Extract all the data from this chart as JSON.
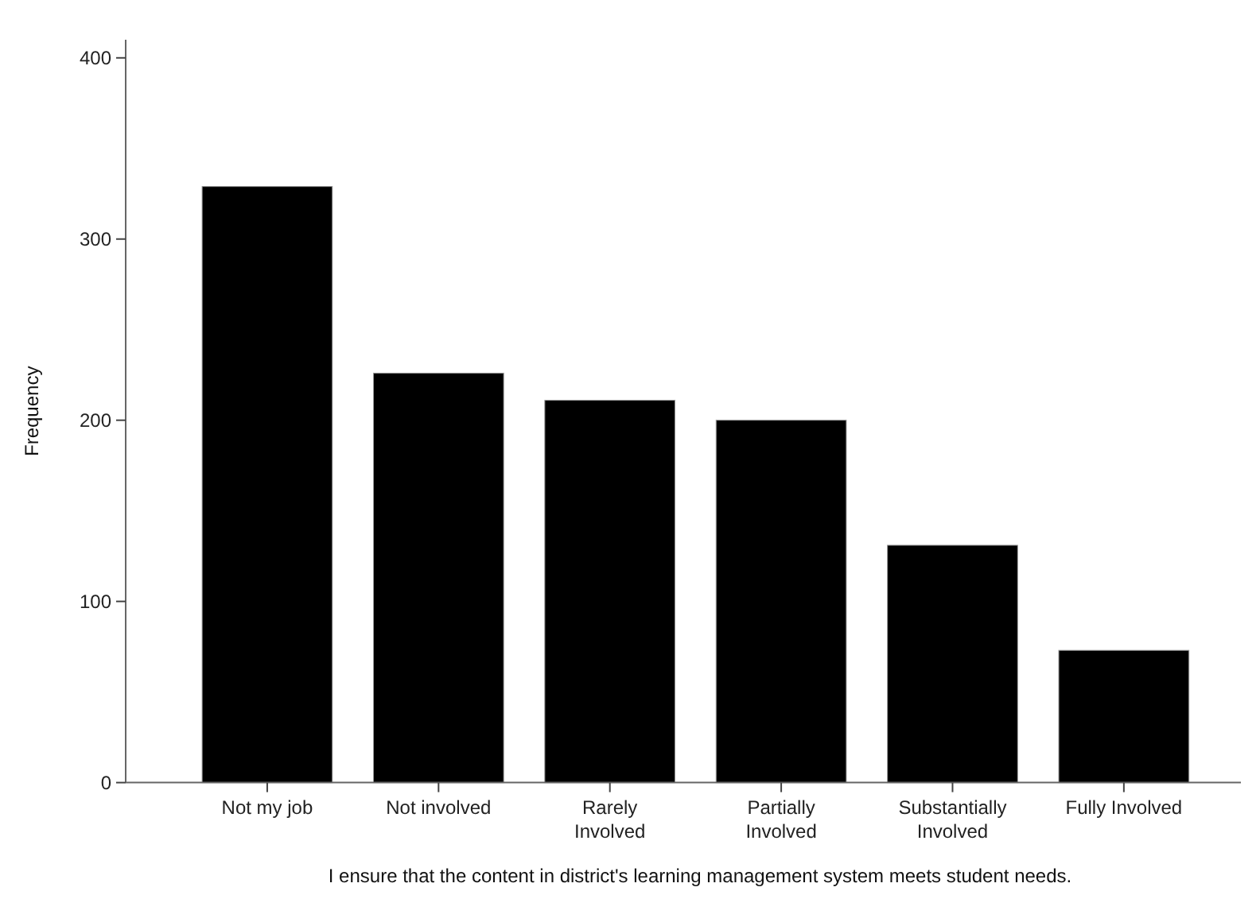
{
  "chart_data": {
    "type": "bar",
    "xlabel": "I ensure that the content in district's learning management system meets student needs.",
    "ylabel": "Frequency",
    "categories": [
      "Not my job",
      "Not involved",
      "Rarely\nInvolved",
      "Partially\nInvolved",
      "Substantially\nInvolved",
      "Fully Involved"
    ],
    "values": [
      329,
      226,
      211,
      200,
      131,
      73
    ],
    "color": "#000000",
    "ylim": [
      0,
      410
    ],
    "yticks": [
      0,
      100,
      200,
      300,
      400
    ],
    "grid": false
  }
}
